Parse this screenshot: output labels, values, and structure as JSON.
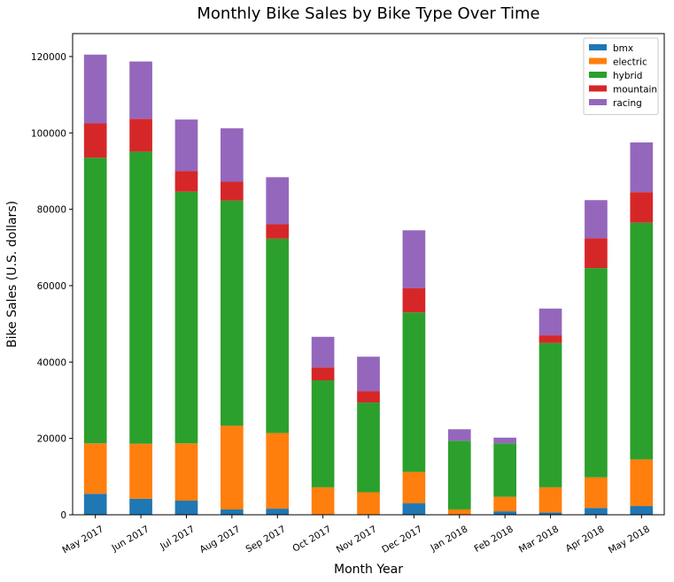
{
  "chart_data": {
    "type": "bar",
    "stacked": true,
    "title": "Monthly Bike Sales by Bike Type Over Time",
    "xlabel": "Month Year",
    "ylabel": "Bike Sales (U.S. dollars)",
    "ylim": [
      0,
      126000
    ],
    "yticks": [
      0,
      20000,
      40000,
      60000,
      80000,
      100000,
      120000
    ],
    "legend_position": "top-right",
    "categories": [
      "May 2017",
      "Jun 2017",
      "Jul 2017",
      "Aug 2017",
      "Sep 2017",
      "Oct 2017",
      "Nov 2017",
      "Dec 2017",
      "Jan 2018",
      "Feb 2018",
      "Mar 2018",
      "Apr 2018",
      "May 2018"
    ],
    "series": [
      {
        "name": "bmx",
        "color": "#1f77b4",
        "values": [
          5500,
          4200,
          3700,
          1400,
          1600,
          0,
          0,
          3000,
          0,
          900,
          600,
          1800,
          2300
        ]
      },
      {
        "name": "electric",
        "color": "#ff7f0e",
        "values": [
          13200,
          14400,
          15000,
          21900,
          19800,
          7200,
          5900,
          8200,
          1400,
          3800,
          6600,
          8000,
          12200
        ]
      },
      {
        "name": "hybrid",
        "color": "#2ca02c",
        "values": [
          74800,
          76500,
          65900,
          59000,
          50900,
          28000,
          23500,
          41800,
          18000,
          14000,
          37800,
          54800,
          62000
        ]
      },
      {
        "name": "mountain",
        "color": "#d62728",
        "values": [
          9000,
          8600,
          5400,
          4900,
          3800,
          3400,
          3000,
          6300,
          0,
          0,
          2000,
          7800,
          8000
        ]
      },
      {
        "name": "racing",
        "color": "#9467bd",
        "values": [
          18000,
          15000,
          13500,
          14000,
          12300,
          8000,
          9000,
          15200,
          3000,
          1500,
          7000,
          10000,
          13000
        ]
      }
    ]
  }
}
